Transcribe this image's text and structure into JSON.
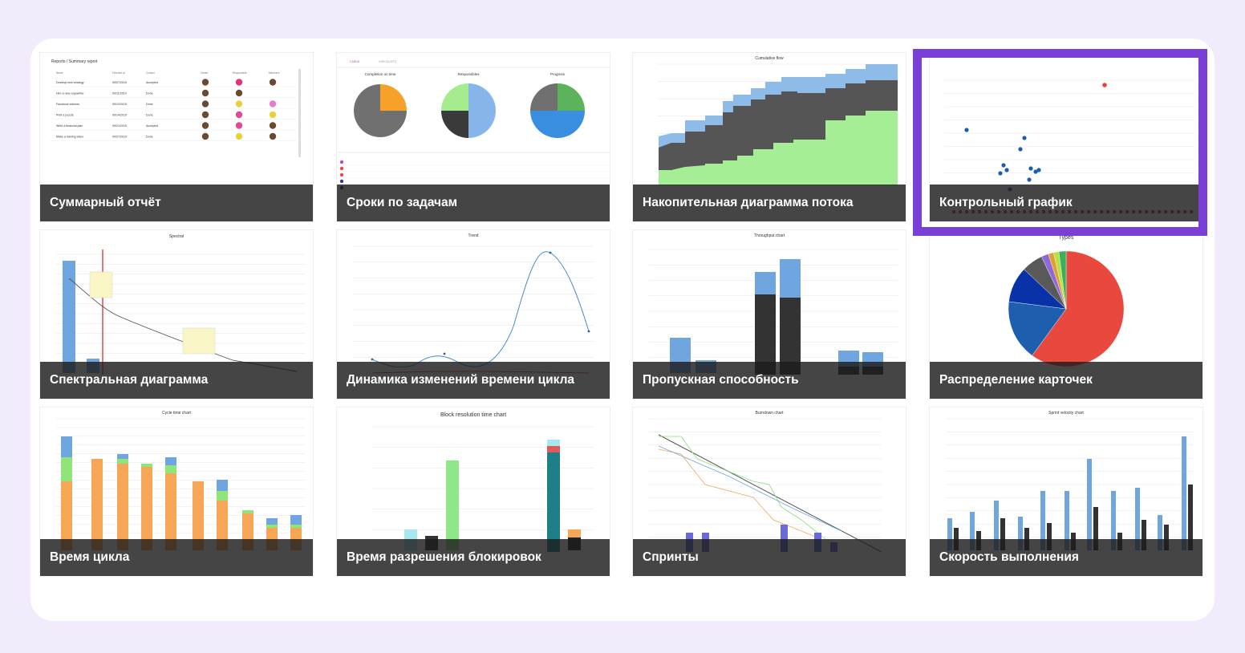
{
  "accent_color": "#7a3fd6",
  "selected_report": "control",
  "reports": [
    {
      "id": "summary",
      "title": "Суммарный отчёт",
      "icon": "table-thumbnail",
      "breadcrumb": "Reports / Summary report",
      "columns": [
        "Name",
        "Finished at",
        "Column",
        "Owner",
        "Responsible",
        "Members"
      ],
      "rows": [
        [
          "Develop new strategy",
          "09/07/2019",
          "Accepted"
        ],
        [
          "Hire a new copywriter",
          "09/11/2019",
          "Done"
        ],
        [
          "Facebook stickers",
          "09/12/2019",
          "Done"
        ],
        [
          "Print a puzzle",
          "09/14/2019",
          "Done"
        ],
        [
          "Write a financial plan",
          "09/21/2019",
          "Accepted"
        ],
        [
          "Make a training video",
          "09/27/2019",
          "Done"
        ]
      ]
    },
    {
      "id": "deadlines",
      "title": "Сроки по задачам",
      "icon": "pie-charts-thumbnail",
      "tabs": [
        "CARDS",
        "CHECKLISTS"
      ],
      "pies": [
        "Completion on time",
        "Responsibles",
        "Progress"
      ]
    },
    {
      "id": "cfd",
      "title": "Накопительная диаграмма потока",
      "icon": "area-chart-thumbnail",
      "chart_title": "Cumulative flow"
    },
    {
      "id": "control",
      "title": "Контрольный график",
      "icon": "scatter-chart-thumbnail"
    },
    {
      "id": "spectral",
      "title": "Спектральная диаграмма",
      "icon": "histogram-thumbnail",
      "chart_title": "Spectral"
    },
    {
      "id": "trend",
      "title": "Динамика изменений времени цикла",
      "icon": "line-chart-thumbnail",
      "chart_title": "Trend"
    },
    {
      "id": "throughput",
      "title": "Пропускная способность",
      "icon": "stacked-bar-thumbnail",
      "chart_title": "Throughput chart"
    },
    {
      "id": "distribution",
      "title": "Распределение карточек",
      "icon": "pie-chart-thumbnail",
      "chart_title": "Types"
    },
    {
      "id": "cycle",
      "title": "Время цикла",
      "icon": "stacked-bar-thumbnail",
      "chart_title": "Cycle time chart"
    },
    {
      "id": "blocks",
      "title": "Время разрешения блокировок",
      "icon": "bar-chart-thumbnail",
      "chart_title": "Block resolution time chart"
    },
    {
      "id": "sprints",
      "title": "Спринты",
      "icon": "burndown-thumbnail",
      "chart_title": "Burndown chart"
    },
    {
      "id": "velocity",
      "title": "Скорость выполнения",
      "icon": "grouped-bar-thumbnail",
      "chart_title": "Sprint velocity chart"
    }
  ]
}
